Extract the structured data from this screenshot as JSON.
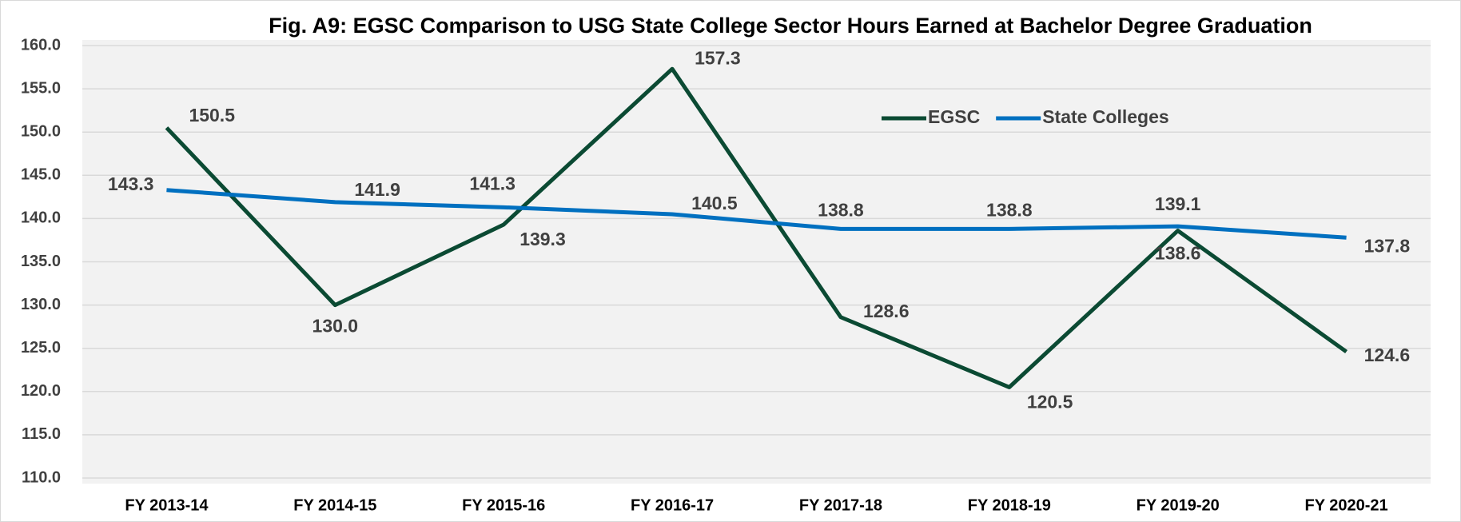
{
  "chart_data": {
    "type": "line",
    "title": "Fig.  A9: EGSC Comparison to USG State College Sector Hours Earned at Bachelor Degree Graduation",
    "categories": [
      "FY 2013-14",
      "FY 2014-15",
      "FY 2015-16",
      "FY 2016-17",
      "FY 2017-18",
      "FY 2018-19",
      "FY 2019-20",
      "FY 2020-21"
    ],
    "series": [
      {
        "name": "EGSC",
        "color": "#0b4a33",
        "values": [
          150.5,
          130.0,
          139.3,
          157.3,
          128.6,
          120.5,
          138.6,
          124.6
        ],
        "value_labels": [
          "150.5",
          "130.0",
          "139.3",
          "157.3",
          "128.6",
          "120.5",
          "138.6",
          "124.6"
        ]
      },
      {
        "name": "State Colleges",
        "color": "#0070c0",
        "values": [
          143.3,
          141.9,
          141.3,
          140.5,
          138.8,
          138.8,
          139.1,
          137.8
        ],
        "value_labels": [
          "143.3",
          "141.9",
          "141.3",
          "140.5",
          "138.8",
          "138.8",
          "139.1",
          "137.8"
        ]
      }
    ],
    "ylim": [
      110,
      160
    ],
    "yticks": [
      {
        "value": 110,
        "label": "110.0"
      },
      {
        "value": 115,
        "label": "115.0"
      },
      {
        "value": 120,
        "label": "120.0"
      },
      {
        "value": 125,
        "label": "125.0"
      },
      {
        "value": 130,
        "label": "130.0"
      },
      {
        "value": 135,
        "label": "135.0"
      },
      {
        "value": 140,
        "label": "140.0"
      },
      {
        "value": 145,
        "label": "145.0"
      },
      {
        "value": 150,
        "label": "150.0"
      },
      {
        "value": 155,
        "label": "155.0"
      },
      {
        "value": 160,
        "label": "160.0"
      }
    ],
    "grid": true,
    "legend": "top-right"
  }
}
